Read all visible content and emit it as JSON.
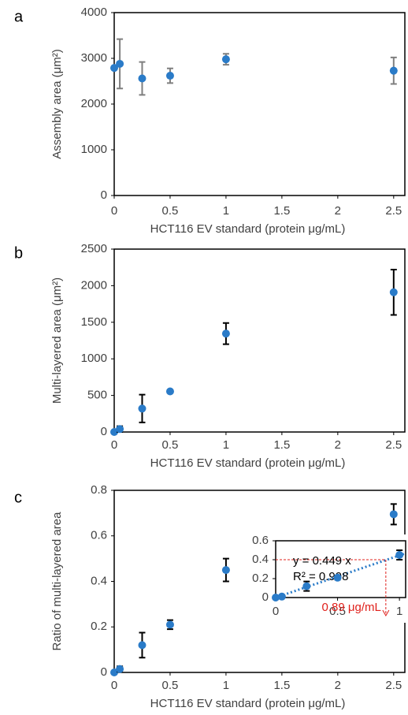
{
  "chart_data": [
    {
      "type": "scatter",
      "label": "a",
      "xlabel": "HCT116 EV standard (protein μg/mL)",
      "ylabel": "Assembly area (μm²)",
      "x": [
        0,
        0.05,
        0.25,
        0.5,
        1,
        2.5
      ],
      "series": [
        {
          "color": "#2a7bc8",
          "error_color": "#7f7f7f",
          "values": [
            2790,
            2880,
            2560,
            2620,
            2980,
            2730
          ],
          "errors": [
            0,
            540,
            360,
            160,
            120,
            290
          ]
        }
      ],
      "xlim": [
        0,
        2.6
      ],
      "ylim": [
        0,
        4000
      ],
      "xticks": [
        0,
        0.5,
        1,
        1.5,
        2,
        2.5
      ],
      "yticks": [
        0,
        1000,
        2000,
        3000,
        4000
      ]
    },
    {
      "type": "scatter",
      "label": "b",
      "xlabel": "HCT116 EV standard (protein μg/mL)",
      "ylabel": "Multi-layered area (μm²)",
      "x": [
        0,
        0.05,
        0.25,
        0.5,
        1,
        2.5
      ],
      "series": [
        {
          "color": "#2a7bc8",
          "error_color": "#000000",
          "values": [
            0,
            40,
            320,
            555,
            1345,
            1910
          ],
          "errors": [
            0,
            40,
            190,
            20,
            145,
            310
          ]
        }
      ],
      "xlim": [
        0,
        2.6
      ],
      "ylim": [
        0,
        2500
      ],
      "xticks": [
        0,
        0.5,
        1,
        1.5,
        2,
        2.5
      ],
      "yticks": [
        0,
        500,
        1000,
        1500,
        2000,
        2500
      ]
    },
    {
      "type": "scatter",
      "label": "c",
      "xlabel": "HCT116  EV standard (protein μg/mL)",
      "ylabel": "Ratio of multi-layered area",
      "x": [
        0,
        0.05,
        0.25,
        0.5,
        1,
        2.5
      ],
      "series": [
        {
          "color": "#2a7bc8",
          "error_color": "#000000",
          "values": [
            0,
            0.015,
            0.12,
            0.21,
            0.45,
            0.695
          ],
          "errors": [
            0,
            0.012,
            0.055,
            0.02,
            0.05,
            0.045
          ]
        }
      ],
      "xlim": [
        0,
        2.6
      ],
      "ylim": [
        0,
        0.8
      ],
      "xticks": [
        0,
        0.5,
        1,
        1.5,
        2,
        2.5
      ],
      "yticks": [
        0,
        0.2,
        0.4,
        0.6,
        0.8
      ]
    },
    {
      "type": "scatter",
      "x": [
        0,
        0.05,
        0.25,
        0.5,
        1
      ],
      "series": [
        {
          "color": "#2a7bc8",
          "error_color": "#000000",
          "values": [
            0,
            0.01,
            0.12,
            0.21,
            0.45
          ],
          "errors": [
            0,
            0.01,
            0.05,
            0.02,
            0.05
          ]
        }
      ],
      "xlim": [
        0,
        1.05
      ],
      "ylim": [
        0,
        0.6
      ],
      "xticks": [
        0,
        0.5,
        1
      ],
      "yticks": [
        0,
        0.2,
        0.4,
        0.6
      ],
      "trendline": true,
      "equation": "y = 0.449 x",
      "r2": "R² = 0.998",
      "readout": {
        "x": 0.89,
        "y": 0.4,
        "text": "0.89 μg/mL",
        "color": "#e0201b"
      }
    }
  ]
}
